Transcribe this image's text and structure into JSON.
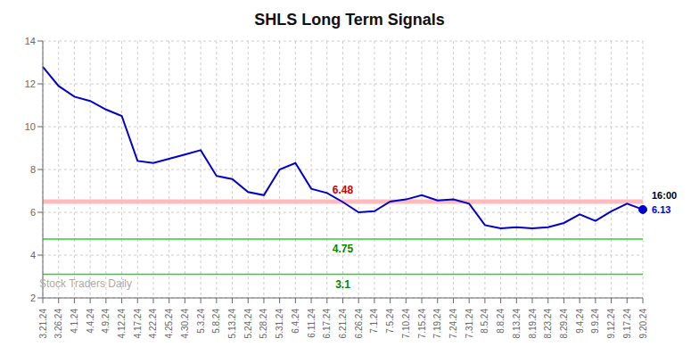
{
  "chart_data": {
    "type": "line",
    "title": "SHLS Long Term Signals",
    "categories": [
      "3.21.24",
      "3.26.24",
      "4.1.24",
      "4.4.24",
      "4.9.24",
      "4.12.24",
      "4.17.24",
      "4.22.24",
      "4.25.24",
      "4.30.24",
      "5.3.24",
      "5.8.24",
      "5.13.24",
      "5.24.24",
      "5.28.24",
      "5.31.24",
      "6.4.24",
      "6.11.24",
      "6.17.24",
      "6.21.24",
      "6.26.24",
      "7.1.24",
      "7.5.24",
      "7.10.24",
      "7.15.24",
      "7.19.24",
      "7.24.24",
      "7.31.24",
      "8.5.24",
      "8.8.24",
      "8.13.24",
      "8.19.24",
      "8.23.24",
      "8.29.24",
      "9.4.24",
      "9.9.24",
      "9.12.24",
      "9.17.24",
      "9.20.24"
    ],
    "values": [
      12.8,
      11.9,
      11.4,
      11.2,
      10.8,
      10.5,
      8.4,
      8.3,
      8.5,
      8.7,
      8.9,
      7.7,
      7.55,
      6.95,
      6.8,
      8.0,
      8.3,
      7.1,
      6.9,
      6.48,
      6.0,
      6.05,
      6.5,
      6.6,
      6.8,
      6.55,
      6.6,
      6.4,
      5.4,
      5.25,
      5.3,
      5.25,
      5.3,
      5.5,
      5.9,
      5.6,
      6.05,
      6.4,
      6.13
    ],
    "color": "#0000cc",
    "marker": "last_point",
    "ylim": [
      2,
      14
    ],
    "yticks": [
      2,
      4,
      6,
      8,
      10,
      12,
      14
    ],
    "grid": true,
    "reference_lines": [
      {
        "value": 6.5,
        "color": "#ffbbbb"
      },
      {
        "value": 4.75,
        "color": "#33cc33"
      },
      {
        "value": 3.1,
        "color": "#33cc33"
      }
    ],
    "annotations": [
      {
        "text": "6.48",
        "category": "6.21.24",
        "value": 6.48,
        "color": "#cc0000"
      },
      {
        "text": "4.75",
        "category": "6.21.24",
        "value": 4.75,
        "color": "#008800"
      },
      {
        "text": "3.1",
        "category": "6.21.24",
        "value": 3.1,
        "color": "#008800"
      },
      {
        "text": "16:00",
        "category": "9.20.24",
        "color": "#000000"
      },
      {
        "text": "6.13",
        "category": "9.20.24",
        "value": 6.13,
        "color": "#0000cc"
      },
      {
        "text": "Stock Traders Daily",
        "color": "#aaaaaa"
      }
    ]
  }
}
